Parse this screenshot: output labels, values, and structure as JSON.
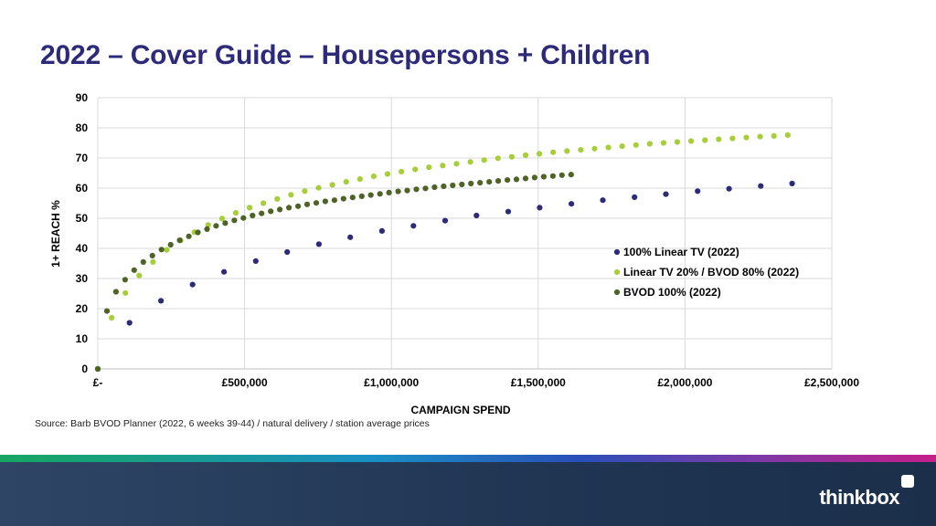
{
  "title": "2022 – Cover Guide – Housepersons + Children",
  "source": "Source: Barb BVOD Planner (2022, 6 weeks 39-44) / natural delivery / station average prices",
  "brand": {
    "name": "thinkbox"
  },
  "chart_data": {
    "type": "scatter",
    "xlabel": "CAMPAIGN SPEND",
    "ylabel": "1+ REACH %",
    "xlim": [
      0,
      2500000
    ],
    "ylim": [
      0,
      90
    ],
    "x_ticks": [
      0,
      500000,
      1000000,
      1500000,
      2000000,
      2500000
    ],
    "x_tick_labels": [
      "£-",
      "£500,000",
      "£1,000,000",
      "£1,500,000",
      "£2,000,000",
      "£2,500,000"
    ],
    "y_ticks": [
      0,
      10,
      20,
      30,
      40,
      50,
      60,
      70,
      80,
      90
    ],
    "y_tick_labels": [
      "0",
      "10",
      "20",
      "30",
      "40",
      "50",
      "60",
      "70",
      "80",
      "90"
    ],
    "grid": true,
    "legend_position": "right",
    "series": [
      {
        "name": "100% Linear TV (2022)",
        "color": "#2e2a7a",
        "x": [
          0,
          108000,
          215000,
          323000,
          430000,
          538000,
          645000,
          753000,
          860000,
          968000,
          1075000,
          1183000,
          1290000,
          1398000,
          1505000,
          1613000,
          1720000,
          1828000,
          1935000,
          2043000,
          2150000,
          2258000,
          2365000
        ],
        "y": [
          0,
          15.3,
          22.6,
          28.0,
          32.2,
          35.8,
          38.8,
          41.4,
          43.7,
          45.8,
          47.5,
          49.2,
          50.9,
          52.2,
          53.5,
          54.8,
          56.0,
          57.0,
          58.0,
          59.0,
          59.8,
          60.7,
          61.5
        ]
      },
      {
        "name": "Linear TV 20% / BVOD 80% (2022)",
        "color": "#a6ce39",
        "x": [
          0,
          47000,
          94000,
          141000,
          188000,
          235000,
          282000,
          329000,
          376000,
          423000,
          470000,
          517000,
          564000,
          611000,
          658000,
          705000,
          752000,
          799000,
          846000,
          893000,
          940000,
          987000,
          1034000,
          1081000,
          1128000,
          1175000,
          1222000,
          1269000,
          1316000,
          1363000,
          1410000,
          1457000,
          1504000,
          1551000,
          1598000,
          1645000,
          1692000,
          1739000,
          1786000,
          1833000,
          1880000,
          1927000,
          1974000,
          2021000,
          2068000,
          2115000,
          2162000,
          2209000,
          2256000,
          2303000,
          2350000
        ],
        "y": [
          0,
          17.0,
          25.2,
          31.0,
          35.5,
          39.5,
          42.6,
          45.4,
          47.8,
          49.9,
          51.8,
          53.5,
          55.0,
          56.4,
          57.8,
          59.0,
          60.1,
          61.1,
          62.1,
          63.0,
          63.9,
          64.7,
          65.5,
          66.2,
          66.9,
          67.5,
          68.1,
          68.7,
          69.3,
          69.9,
          70.4,
          70.9,
          71.4,
          71.9,
          72.3,
          72.7,
          73.1,
          73.5,
          73.9,
          74.3,
          74.7,
          75.0,
          75.3,
          75.6,
          75.9,
          76.2,
          76.5,
          76.8,
          77.1,
          77.3,
          77.6
        ]
      },
      {
        "name": "BVOD 100% (2022)",
        "color": "#4f6228",
        "x": [
          0,
          31000,
          62000,
          93000,
          124000,
          155000,
          186000,
          217000,
          248000,
          279000,
          310000,
          341000,
          372000,
          403000,
          434000,
          465000,
          496000,
          527000,
          558000,
          589000,
          620000,
          651000,
          682000,
          713000,
          744000,
          775000,
          806000,
          837000,
          868000,
          899000,
          930000,
          961000,
          992000,
          1023000,
          1054000,
          1085000,
          1116000,
          1147000,
          1178000,
          1209000,
          1240000,
          1271000,
          1302000,
          1333000,
          1364000,
          1395000,
          1426000,
          1457000,
          1488000,
          1519000,
          1550000,
          1581000,
          1612000
        ],
        "y": [
          0,
          19.2,
          25.6,
          29.6,
          32.8,
          35.5,
          37.6,
          39.6,
          41.2,
          42.7,
          44.0,
          45.3,
          46.4,
          47.5,
          48.4,
          49.3,
          50.1,
          50.9,
          51.6,
          52.3,
          52.9,
          53.5,
          54.0,
          54.6,
          55.1,
          55.6,
          56.0,
          56.5,
          56.9,
          57.3,
          57.7,
          58.1,
          58.5,
          58.9,
          59.2,
          59.6,
          59.9,
          60.3,
          60.6,
          60.9,
          61.2,
          61.5,
          61.8,
          62.1,
          62.4,
          62.7,
          62.9,
          63.2,
          63.5,
          63.8,
          64.0,
          64.3,
          64.5
        ]
      }
    ]
  }
}
